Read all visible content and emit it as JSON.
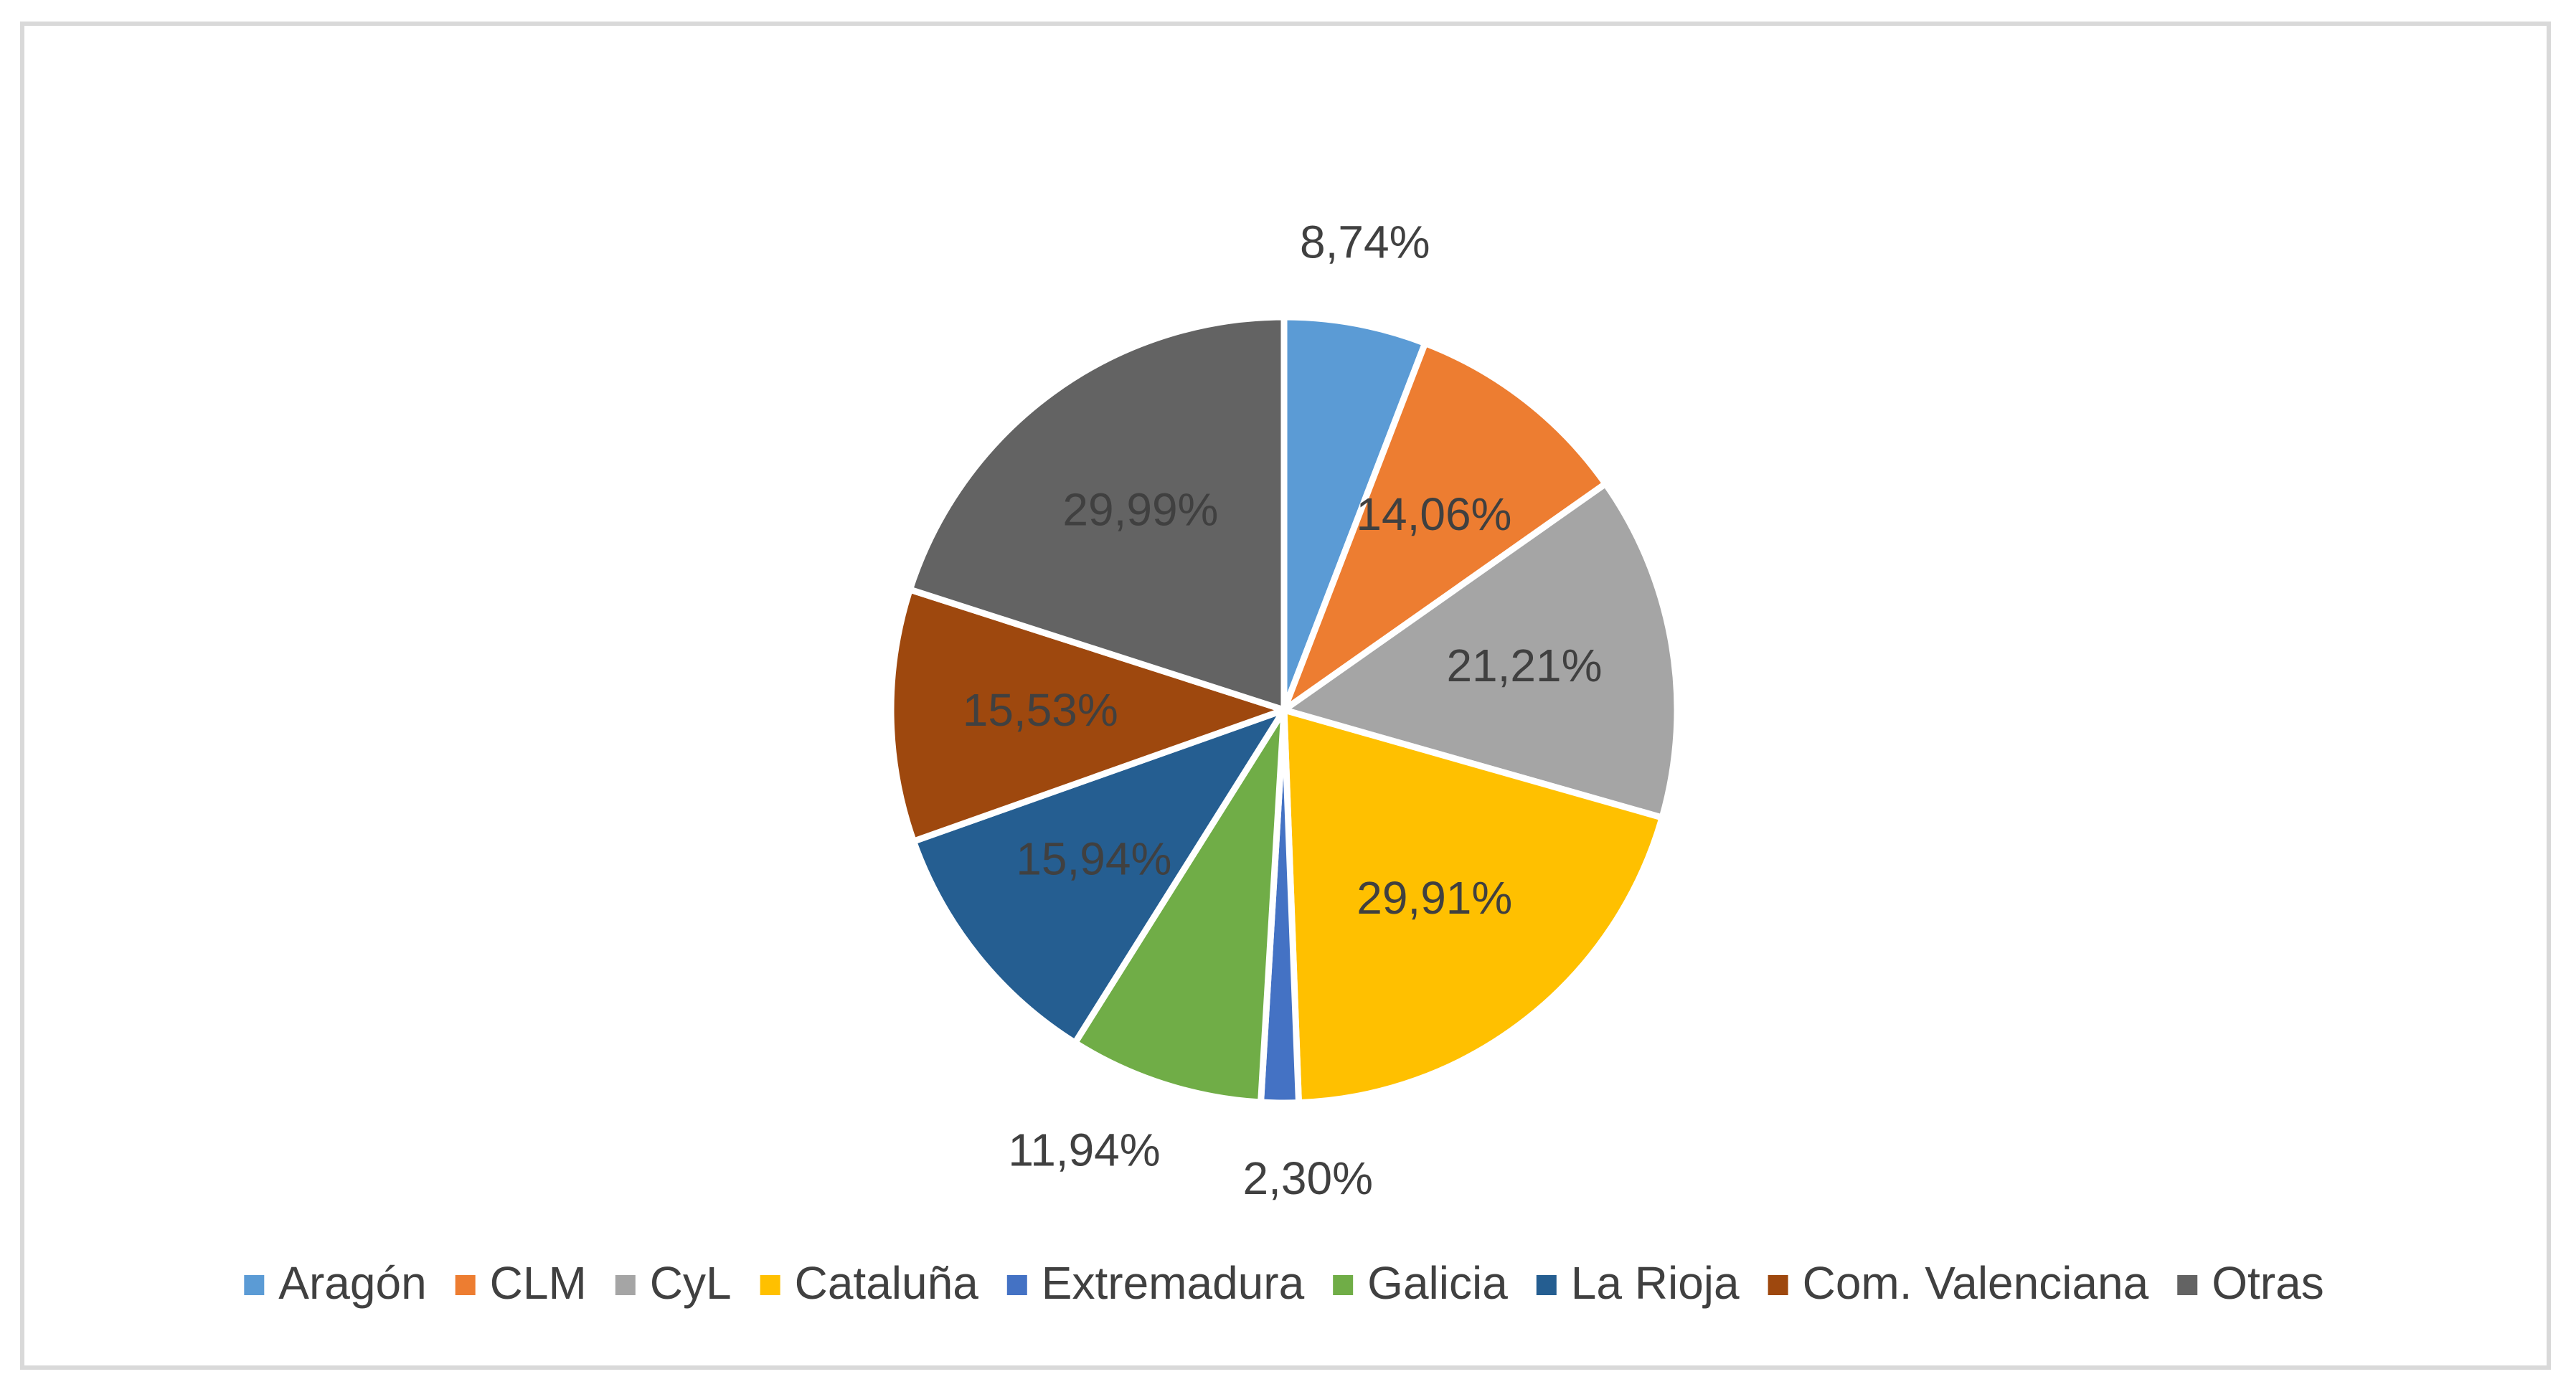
{
  "chart_data": {
    "type": "pie",
    "title": "",
    "categories": [
      "Aragón",
      "CLM",
      "CyL",
      "Cataluña",
      "Extremadura",
      "Galicia",
      "La Rioja",
      "Com. Valenciana",
      "Otras"
    ],
    "labels": [
      "8,74%",
      "14,06%",
      "21,21%",
      "29,91%",
      "2,30%",
      "11,94%",
      "15,94%",
      "15,53%",
      "29,99%"
    ],
    "values": [
      8.74,
      14.06,
      21.21,
      29.91,
      2.3,
      11.94,
      15.94,
      15.53,
      29.99
    ],
    "colors": [
      "#5b9bd5",
      "#ed7d31",
      "#a5a5a5",
      "#ffc000",
      "#4472c4",
      "#70ad47",
      "#255e91",
      "#9e480e",
      "#636363"
    ],
    "legend_position": "bottom",
    "start_angle": "12 o'clock",
    "direction": "clockwise"
  }
}
